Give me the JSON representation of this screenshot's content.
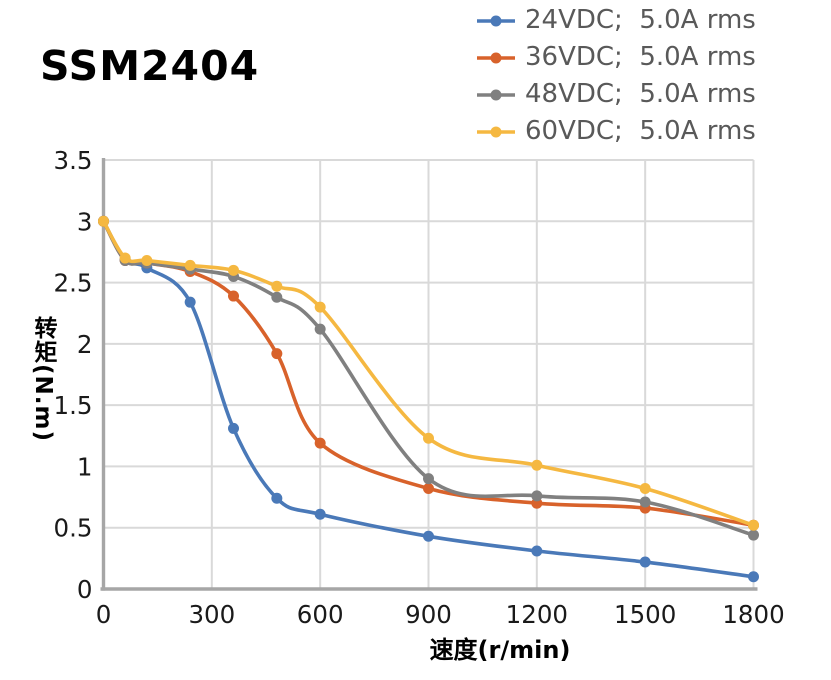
{
  "title": "SSM2404",
  "chart_data": {
    "type": "line",
    "title": "SSM2404",
    "xlabel": "速度(r/min)",
    "ylabel": "转矩(N.m)",
    "xlim": [
      0,
      1800
    ],
    "ylim": [
      0,
      3.5
    ],
    "x_ticks": [
      0,
      300,
      600,
      900,
      1200,
      1500,
      1800
    ],
    "y_ticks": [
      0,
      0.5,
      1,
      1.5,
      2,
      2.5,
      3,
      3.5
    ],
    "grid": true,
    "smooth": true,
    "legend_position": "top-right",
    "x": [
      0,
      60,
      120,
      240,
      360,
      480,
      600,
      900,
      1200,
      1500,
      1800
    ],
    "series": [
      {
        "name": "24VDC;  5.0A rms",
        "color": "#4A79B8",
        "values": [
          3.0,
          2.69,
          2.62,
          2.34,
          1.31,
          0.74,
          0.61,
          0.43,
          0.31,
          0.22,
          0.1
        ]
      },
      {
        "name": "36VDC;  5.0A rms",
        "color": "#D8622B",
        "values": [
          3.0,
          2.68,
          2.66,
          2.59,
          2.39,
          1.92,
          1.19,
          0.82,
          0.7,
          0.66,
          0.52
        ]
      },
      {
        "name": "48VDC;  5.0A rms",
        "color": "#808080",
        "values": [
          3.0,
          2.68,
          2.66,
          2.61,
          2.55,
          2.38,
          2.12,
          0.9,
          0.76,
          0.71,
          0.44
        ]
      },
      {
        "name": "60VDC;  5.0A rms",
        "color": "#F5B841",
        "values": [
          3.0,
          2.7,
          2.68,
          2.64,
          2.6,
          2.47,
          2.3,
          1.23,
          1.01,
          0.82,
          0.52
        ]
      }
    ]
  },
  "style": {
    "background": "#FFFFFF",
    "grid_color": "#D9D9D9",
    "axis_color": "#A6A6A6",
    "tick_label_color": "#1A1A1A",
    "legend_text_color": "#595959"
  }
}
